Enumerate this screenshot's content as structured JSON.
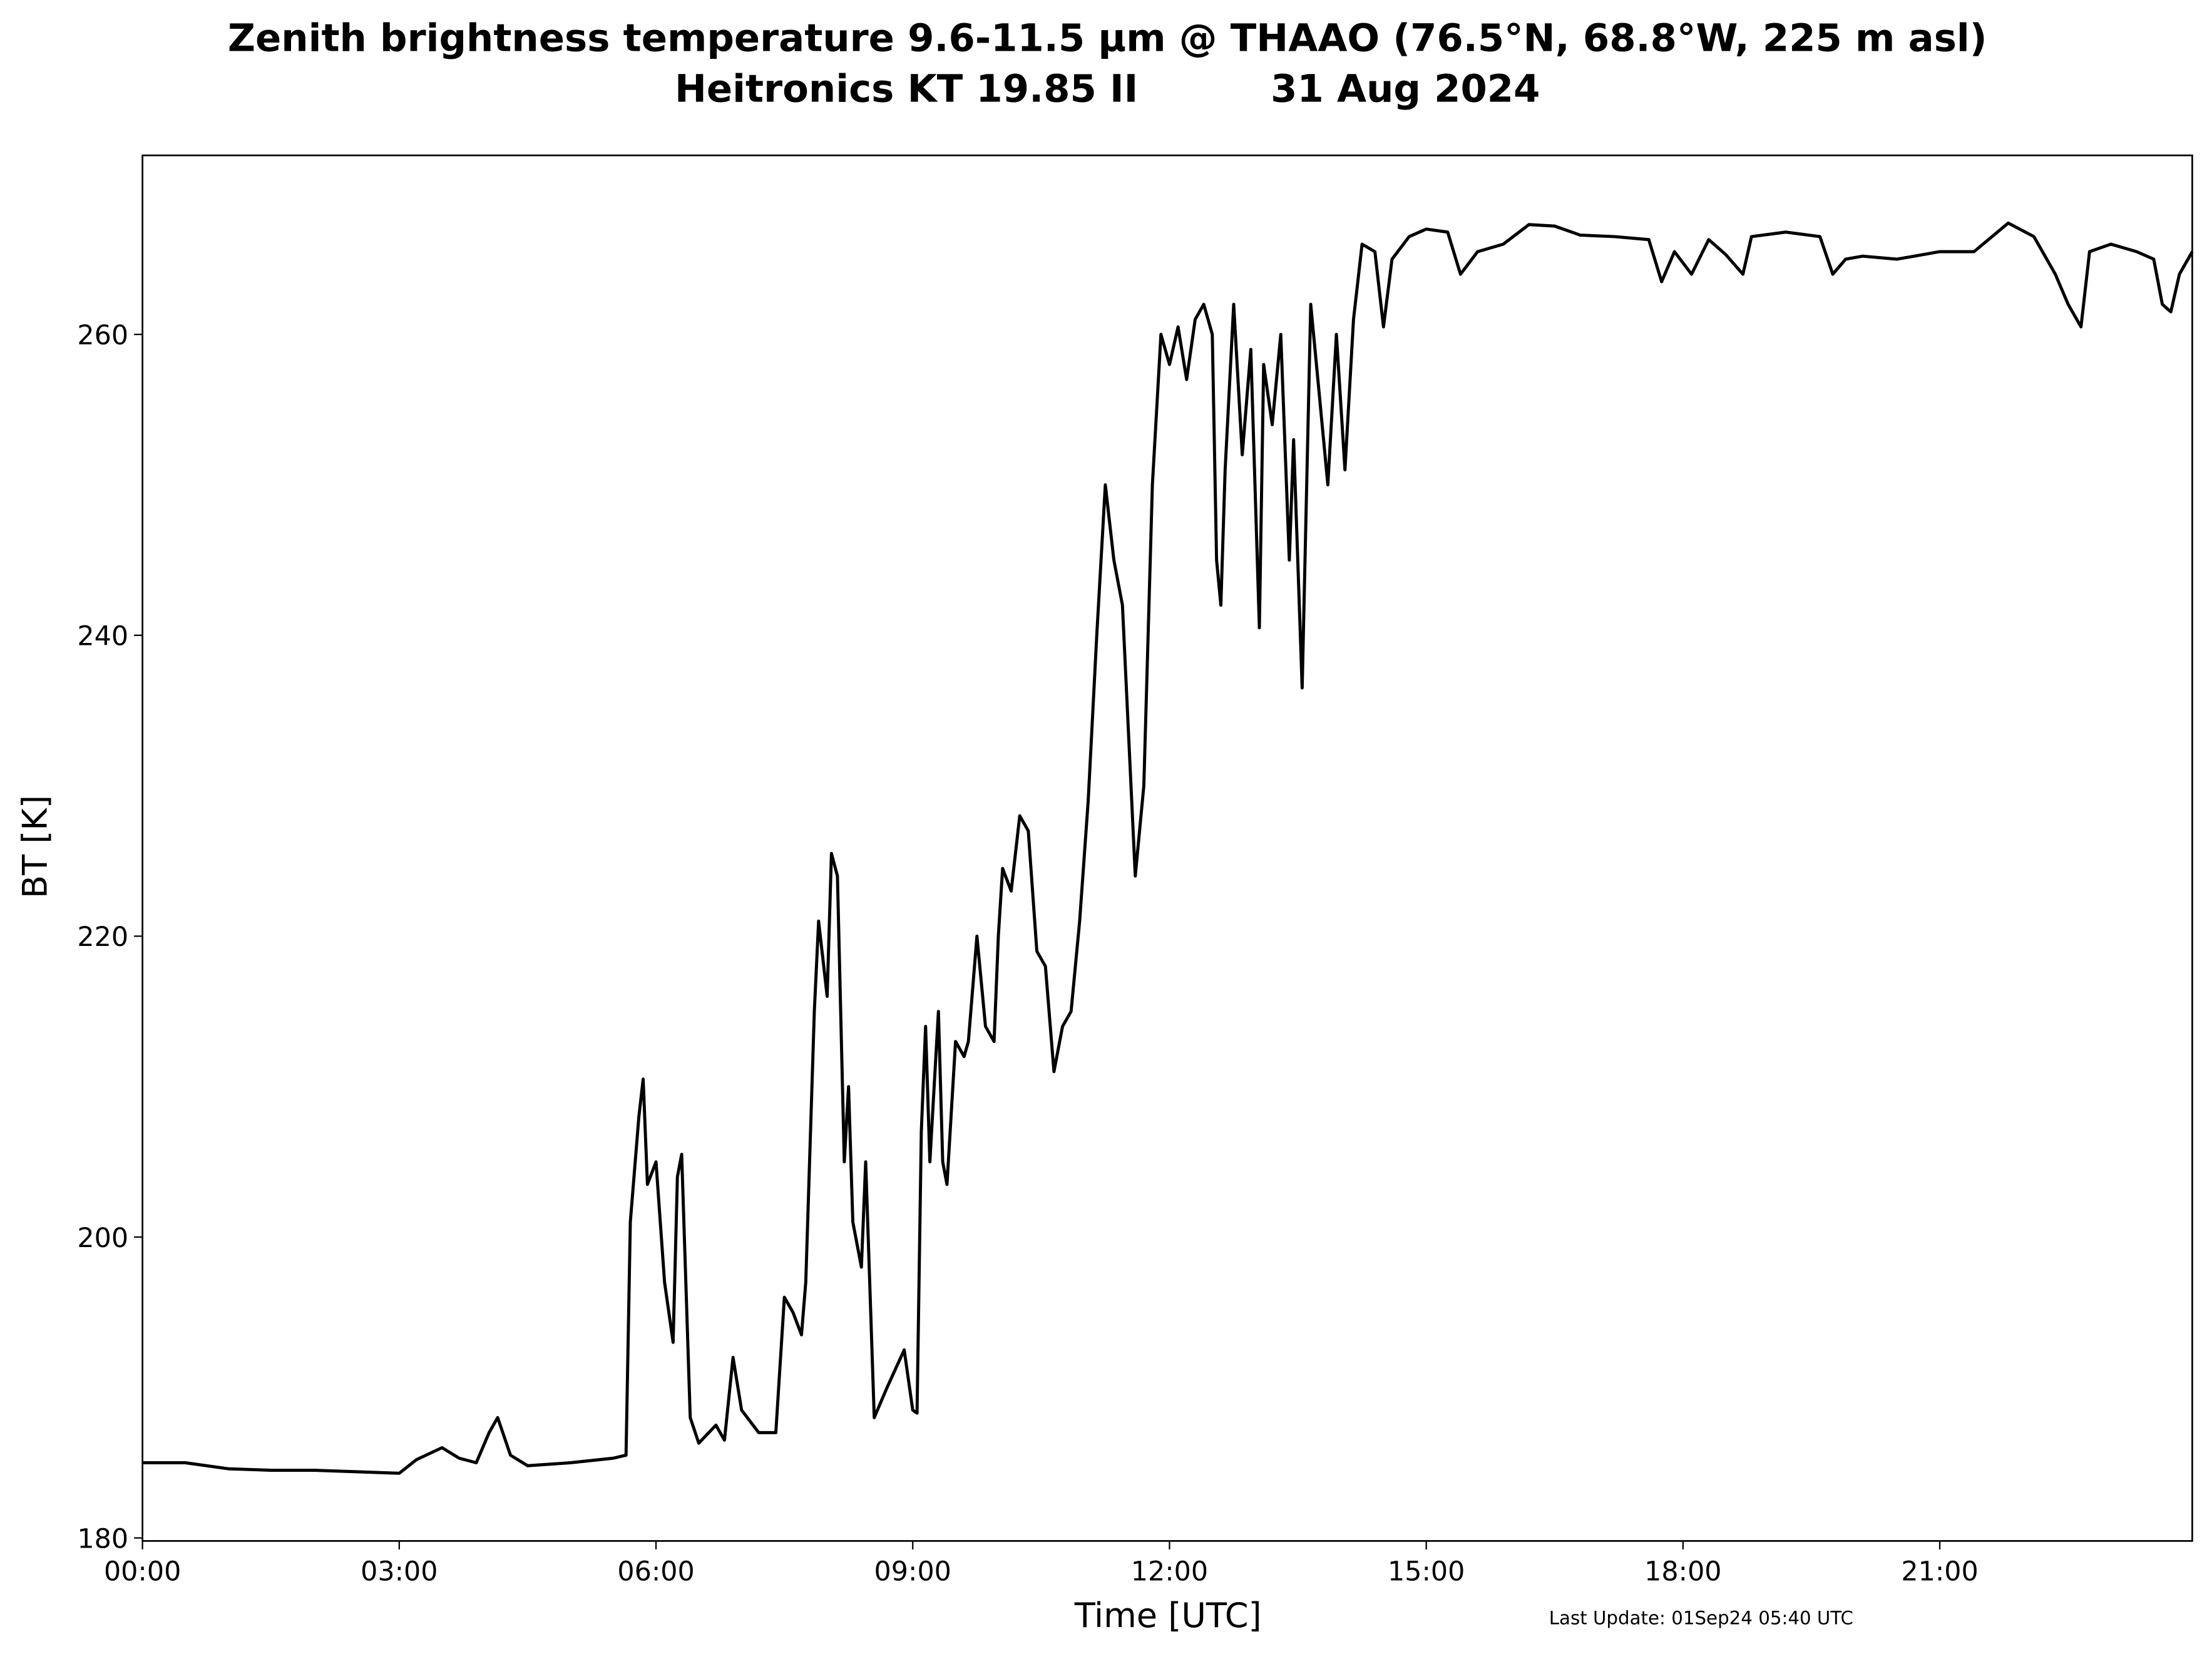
{
  "chart_data": {
    "type": "line",
    "title": "Zenith brightness temperature 9.6-11.5 μm @ THAAO (76.5°N, 68.8°W, 225 m asl)",
    "subtitle": "Heitronics KT 19.85 II          31 Aug 2024",
    "xlabel": "Time [UTC]",
    "ylabel": "BT [K]",
    "annotation": "Last Update: 01Sep24 05:40 UTC",
    "xlim": [
      0,
      23.95
    ],
    "ylim": [
      179.8,
      271.9
    ],
    "xticks": [
      {
        "value": 0,
        "label": "00:00"
      },
      {
        "value": 3,
        "label": "03:00"
      },
      {
        "value": 6,
        "label": "06:00"
      },
      {
        "value": 9,
        "label": "09:00"
      },
      {
        "value": 12,
        "label": "12:00"
      },
      {
        "value": 15,
        "label": "15:00"
      },
      {
        "value": 18,
        "label": "18:00"
      },
      {
        "value": 21,
        "label": "21:00"
      }
    ],
    "yticks": [
      180,
      200,
      220,
      240,
      260
    ],
    "grid": false,
    "series": [
      {
        "color": "#000000",
        "x": [
          0,
          0.5,
          1,
          1.5,
          2,
          2.5,
          3,
          3.2,
          3.5,
          3.7,
          3.9,
          4.05,
          4.15,
          4.3,
          4.5,
          5,
          5.5,
          5.65,
          5.7,
          5.8,
          5.85,
          5.9,
          6.0,
          6.1,
          6.2,
          6.25,
          6.3,
          6.4,
          6.5,
          6.7,
          6.8,
          6.9,
          7.0,
          7.2,
          7.4,
          7.5,
          7.6,
          7.7,
          7.75,
          7.85,
          7.9,
          8.0,
          8.05,
          8.12,
          8.2,
          8.25,
          8.3,
          8.4,
          8.45,
          8.55,
          8.7,
          8.9,
          9.0,
          9.05,
          9.1,
          9.15,
          9.2,
          9.3,
          9.35,
          9.4,
          9.5,
          9.6,
          9.65,
          9.75,
          9.85,
          9.95,
          10.0,
          10.05,
          10.15,
          10.25,
          10.35,
          10.45,
          10.55,
          10.65,
          10.75,
          10.85,
          10.95,
          11.05,
          11.15,
          11.25,
          11.35,
          11.45,
          11.55,
          11.6,
          11.7,
          11.8,
          11.9,
          12.0,
          12.1,
          12.2,
          12.3,
          12.4,
          12.5,
          12.55,
          12.6,
          12.65,
          12.75,
          12.85,
          12.95,
          13.05,
          13.1,
          13.2,
          13.3,
          13.4,
          13.45,
          13.55,
          13.65,
          13.75,
          13.85,
          13.95,
          14.05,
          14.15,
          14.25,
          14.4,
          14.5,
          14.6,
          14.8,
          15.0,
          15.25,
          15.4,
          15.6,
          15.9,
          16.2,
          16.5,
          16.8,
          17.2,
          17.6,
          17.75,
          17.9,
          18.1,
          18.3,
          18.5,
          18.7,
          18.8,
          19.2,
          19.6,
          19.75,
          19.9,
          20.1,
          20.5,
          21.0,
          21.4,
          21.8,
          22.1,
          22.35,
          22.5,
          22.65,
          22.75,
          23.0,
          23.3,
          23.5,
          23.6,
          23.7,
          23.8,
          23.95
        ],
        "values": [
          185,
          185,
          184.6,
          184.5,
          184.5,
          184.4,
          184.3,
          185.2,
          186,
          185.3,
          185,
          187,
          188,
          185.5,
          184.8,
          185,
          185.3,
          185.5,
          201,
          208,
          210.5,
          203.5,
          205,
          197,
          193,
          204,
          205.5,
          188,
          186.3,
          187.5,
          186.5,
          192,
          188.5,
          187,
          187,
          196,
          195,
          193.5,
          197,
          215,
          221,
          216,
          225.5,
          224,
          205,
          210,
          201,
          198,
          205,
          188,
          190,
          192.5,
          188.5,
          188.3,
          207,
          214,
          205,
          215,
          205,
          203.5,
          213,
          212,
          213,
          220,
          214,
          213,
          220,
          224.5,
          223,
          228,
          227,
          219,
          218,
          211,
          214,
          215,
          221,
          229,
          240,
          250,
          245,
          242,
          230,
          224,
          230,
          250,
          260,
          258,
          260.5,
          257,
          261,
          262,
          260,
          245,
          242,
          251,
          262,
          252,
          259,
          240.5,
          258,
          254,
          260,
          245,
          253,
          236.5,
          262,
          256,
          250,
          260,
          251,
          261,
          266,
          265.5,
          260.5,
          265,
          266.5,
          267,
          266.8,
          264,
          265.5,
          266,
          267.3,
          267.2,
          266.6,
          266.5,
          266.3,
          263.5,
          265.5,
          264,
          266.3,
          265.3,
          264,
          266.5,
          266.8,
          266.5,
          264,
          265,
          265.2,
          265,
          265.5,
          265.5,
          267.4,
          266.5,
          264,
          262,
          260.5,
          265.5,
          266,
          265.5,
          265,
          262,
          261.5,
          264,
          265.5
        ]
      }
    ]
  }
}
